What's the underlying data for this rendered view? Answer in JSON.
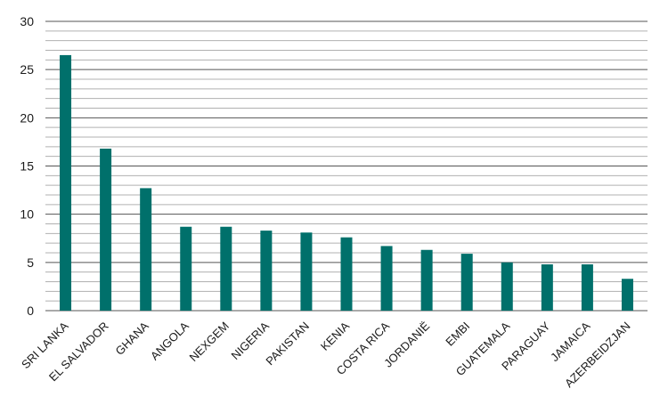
{
  "chart_data": {
    "type": "bar",
    "categories": [
      "SRI LANKA",
      "EL SALVADOR",
      "GHANA",
      "ANGOLA",
      "NEXGEM",
      "NIGERIA",
      "PAKISTAN",
      "KENIA",
      "COSTA RICA",
      "JORDANIË",
      "EMBI",
      "GUATEMALA",
      "PARAGUAY",
      "JAMAICA",
      "AZERBEIDZJAN"
    ],
    "values": [
      26.5,
      16.8,
      12.7,
      8.7,
      8.7,
      8.3,
      8.1,
      7.6,
      6.7,
      6.3,
      5.9,
      5.0,
      4.8,
      4.8,
      3.3
    ],
    "title": "",
    "xlabel": "",
    "ylabel": "",
    "ylim": [
      0,
      30
    ],
    "yticks": [
      0,
      5,
      10,
      15,
      20,
      25,
      30
    ],
    "grid": true,
    "minor_grid": true,
    "bar_color": "#00706b",
    "major_grid_color": "#555555",
    "minor_grid_color": "#b0b0b0"
  }
}
